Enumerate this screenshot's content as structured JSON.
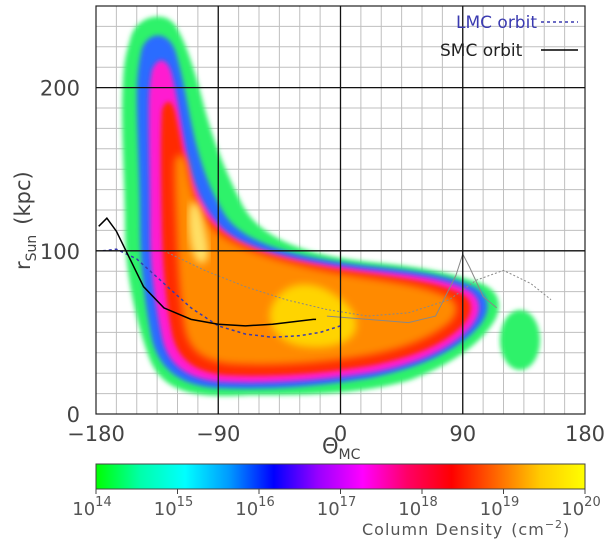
{
  "chart_data": {
    "type": "heatmap",
    "xlabel": "Θ",
    "xlabel_sub": "MC",
    "ylabel": "r",
    "ylabel_sub": "Sun",
    "ylabel_unit": "(kpc)",
    "xlim": [
      -180,
      180
    ],
    "ylim": [
      0,
      250
    ],
    "x_ticks": [
      "−180",
      "−90",
      "0",
      "90",
      "180"
    ],
    "x_tick_values": [
      -180,
      -90,
      0,
      90,
      180
    ],
    "y_ticks": [
      "0",
      "100",
      "200"
    ],
    "y_tick_values": [
      0,
      100,
      200
    ],
    "grid": true,
    "legend_position": "top-right",
    "legend": [
      {
        "label": "LMC orbit",
        "style": "dashed",
        "color": "#3a3ab0"
      },
      {
        "label": "SMC orbit",
        "style": "solid",
        "color": "#000000"
      }
    ],
    "colorbar": {
      "title": "Column Density",
      "unit": "(cm",
      "unit_exp": "−2",
      "unit_close": ")",
      "log_min": 14,
      "log_max": 20,
      "tick_base": "10",
      "tick_exponents": [
        "14",
        "15",
        "16",
        "17",
        "18",
        "19",
        "20"
      ],
      "colors": [
        "#00ff00",
        "#00ffaa",
        "#00ffff",
        "#0099ff",
        "#0000ff",
        "#9900ff",
        "#ff00ff",
        "#ff0066",
        "#ff0000",
        "#ff6600",
        "#ffcc00",
        "#ffff00"
      ]
    },
    "series": [
      {
        "name": "LMC orbit",
        "x": [
          -175,
          -165,
          -150,
          -130,
          -110,
          -90,
          -70,
          -50,
          -30,
          -15,
          0
        ],
        "y": [
          100,
          101,
          95,
          80,
          65,
          54,
          49,
          47,
          48,
          50,
          54
        ]
      },
      {
        "name": "SMC orbit",
        "x": [
          -178,
          -172,
          -165,
          -155,
          -145,
          -130,
          -110,
          -90,
          -70,
          -50,
          -30,
          -20,
          -18
        ],
        "y": [
          115,
          120,
          112,
          95,
          78,
          65,
          58,
          55,
          54,
          55,
          57,
          58,
          58
        ]
      }
    ],
    "extra_orbits": [
      {
        "x": [
          -130,
          -100,
          -70,
          -40,
          -10,
          20,
          50,
          80,
          100,
          120,
          140,
          155
        ],
        "y": [
          100,
          88,
          78,
          70,
          64,
          60,
          62,
          70,
          82,
          88,
          80,
          70
        ]
      },
      {
        "x": [
          -10,
          20,
          50,
          70,
          85,
          90,
          95,
          105,
          115
        ],
        "y": [
          60,
          58,
          56,
          60,
          85,
          98,
          90,
          72,
          65
        ]
      }
    ]
  }
}
